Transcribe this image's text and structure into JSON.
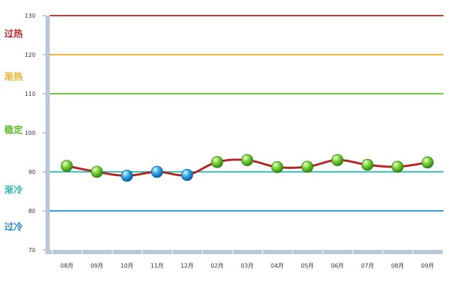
{
  "chart_data": {
    "type": "line",
    "title": "",
    "xlabel": "",
    "ylabel": "",
    "categories": [
      "08月",
      "09月",
      "10月",
      "11月",
      "12月",
      "02月",
      "03月",
      "04月",
      "05月",
      "06月",
      "07月",
      "08月",
      "09月"
    ],
    "series": [
      {
        "values": [
          91.5,
          90,
          89,
          90,
          89.2,
          92.5,
          93,
          91.2,
          91.3,
          93,
          91.8,
          91.3,
          92.4
        ]
      }
    ],
    "point_colors": [
      "green",
      "green",
      "blue",
      "blue",
      "blue",
      "green",
      "green",
      "green",
      "green",
      "green",
      "green",
      "green",
      "green"
    ],
    "ylim": [
      70,
      130
    ],
    "yticks": [
      70,
      80,
      90,
      100,
      110,
      120,
      130
    ],
    "grid": false,
    "thresholds": [
      {
        "value": 130,
        "color": "#c0392b"
      },
      {
        "value": 120,
        "color": "#f0b430"
      },
      {
        "value": 110,
        "color": "#66cc33"
      },
      {
        "value": 90,
        "color": "#33ccbb"
      },
      {
        "value": 80,
        "color": "#3399dd"
      }
    ],
    "zone_labels": [
      {
        "label": "过热",
        "value": 125.5,
        "color": "#c0282d"
      },
      {
        "label": "渐热",
        "value": 114.5,
        "color": "#f0b02a"
      },
      {
        "label": "稳定",
        "value": 100.8,
        "color": "#5cb82a"
      },
      {
        "label": "渐冷",
        "value": 85.5,
        "color": "#2eb8a8"
      },
      {
        "label": "过冷",
        "value": 76,
        "color": "#2a88d0"
      }
    ],
    "line_color": "#b32424",
    "axis_color": "#b9c7d9"
  }
}
